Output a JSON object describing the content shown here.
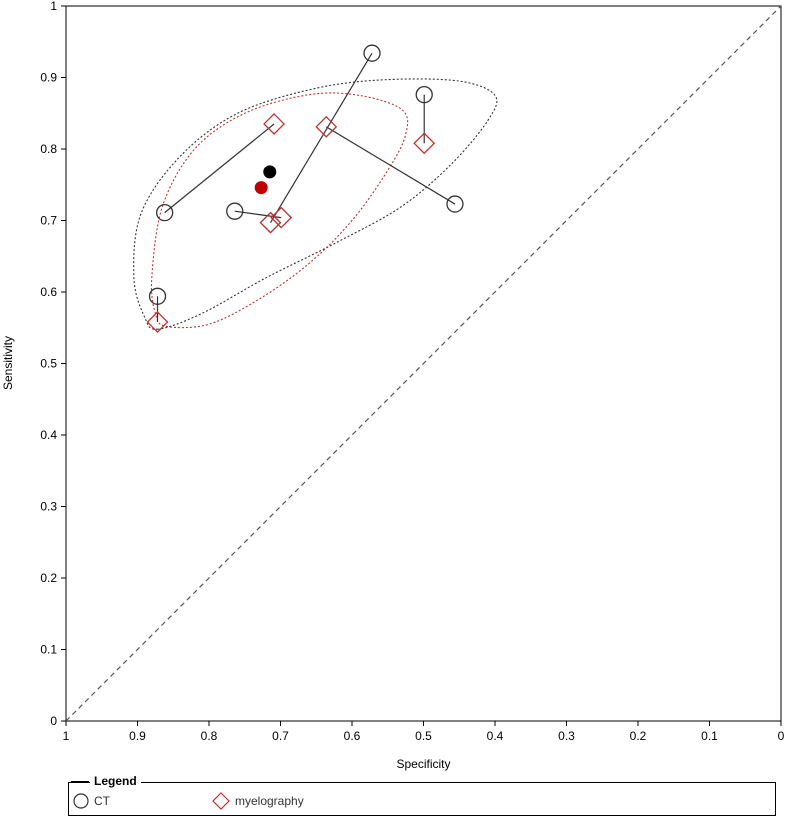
{
  "chart_data": {
    "type": "scatter",
    "title": "",
    "xlabel": "Specificity",
    "ylabel": "Sensitivity",
    "xlim": [
      1,
      0
    ],
    "ylim": [
      0,
      1
    ],
    "x_ticks": [
      "1",
      "0.9",
      "0.8",
      "0.7",
      "0.6",
      "0.5",
      "0.4",
      "0.3",
      "0.2",
      "0.1",
      "0"
    ],
    "y_ticks": [
      "0",
      "0.1",
      "0.2",
      "0.3",
      "0.4",
      "0.5",
      "0.6",
      "0.7",
      "0.8",
      "0.9",
      "1"
    ],
    "reference_line": "diagonal-dashed",
    "legend_title": "Legend",
    "legend_placement": "bottom",
    "series": [
      {
        "name": "CT",
        "marker": "circle",
        "color": "#333333",
        "points": [
          {
            "specificity": 0.572,
            "sensitivity": 0.934
          },
          {
            "specificity": 0.499,
            "sensitivity": 0.876
          },
          {
            "specificity": 0.456,
            "sensitivity": 0.723
          },
          {
            "specificity": 0.862,
            "sensitivity": 0.711
          },
          {
            "specificity": 0.764,
            "sensitivity": 0.713
          },
          {
            "specificity": 0.872,
            "sensitivity": 0.594
          }
        ],
        "summary_point": {
          "specificity": 0.715,
          "sensitivity": 0.768,
          "color": "#000000"
        }
      },
      {
        "name": "myelography",
        "marker": "diamond",
        "color": "#c03030",
        "points": [
          {
            "specificity": 0.714,
            "sensitivity": 0.697
          },
          {
            "specificity": 0.499,
            "sensitivity": 0.808
          },
          {
            "specificity": 0.636,
            "sensitivity": 0.831
          },
          {
            "specificity": 0.709,
            "sensitivity": 0.835
          },
          {
            "specificity": 0.699,
            "sensitivity": 0.704
          },
          {
            "specificity": 0.872,
            "sensitivity": 0.558
          }
        ],
        "summary_point": {
          "specificity": 0.727,
          "sensitivity": 0.746,
          "color": "#c00000"
        }
      }
    ],
    "paired_lines": [
      [
        {
          "specificity": 0.572,
          "sensitivity": 0.934
        },
        {
          "specificity": 0.714,
          "sensitivity": 0.697
        }
      ],
      [
        {
          "specificity": 0.499,
          "sensitivity": 0.876
        },
        {
          "specificity": 0.499,
          "sensitivity": 0.808
        }
      ],
      [
        {
          "specificity": 0.456,
          "sensitivity": 0.723
        },
        {
          "specificity": 0.636,
          "sensitivity": 0.831
        }
      ],
      [
        {
          "specificity": 0.862,
          "sensitivity": 0.711
        },
        {
          "specificity": 0.709,
          "sensitivity": 0.835
        }
      ],
      [
        {
          "specificity": 0.764,
          "sensitivity": 0.713
        },
        {
          "specificity": 0.699,
          "sensitivity": 0.704
        }
      ],
      [
        {
          "specificity": 0.872,
          "sensitivity": 0.594
        },
        {
          "specificity": 0.872,
          "sensitivity": 0.558
        }
      ]
    ],
    "confidence_regions": [
      {
        "series": "CT",
        "color": "#333333",
        "style": "dotted",
        "points": [
          [
            0.872,
            0.548
          ],
          [
            0.81,
            0.57
          ],
          [
            0.72,
            0.62
          ],
          [
            0.62,
            0.67
          ],
          [
            0.53,
            0.72
          ],
          [
            0.46,
            0.78
          ],
          [
            0.41,
            0.84
          ],
          [
            0.4,
            0.875
          ],
          [
            0.45,
            0.895
          ],
          [
            0.55,
            0.897
          ],
          [
            0.65,
            0.885
          ],
          [
            0.76,
            0.85
          ],
          [
            0.84,
            0.79
          ],
          [
            0.895,
            0.71
          ],
          [
            0.905,
            0.62
          ],
          [
            0.89,
            0.565
          ]
        ]
      },
      {
        "series": "myelography",
        "color": "#c03030",
        "style": "dotted",
        "points": [
          [
            0.86,
            0.552
          ],
          [
            0.8,
            0.555
          ],
          [
            0.73,
            0.59
          ],
          [
            0.66,
            0.64
          ],
          [
            0.6,
            0.7
          ],
          [
            0.55,
            0.77
          ],
          [
            0.525,
            0.82
          ],
          [
            0.53,
            0.855
          ],
          [
            0.59,
            0.875
          ],
          [
            0.66,
            0.876
          ],
          [
            0.75,
            0.85
          ],
          [
            0.82,
            0.8
          ],
          [
            0.865,
            0.72
          ],
          [
            0.88,
            0.62
          ],
          [
            0.875,
            0.57
          ]
        ]
      }
    ]
  },
  "legend": {
    "title": "Legend",
    "items": [
      {
        "label": "CT",
        "marker": "circle",
        "color": "#333333"
      },
      {
        "label": "myelography",
        "marker": "diamond",
        "color": "#c03030"
      }
    ]
  }
}
